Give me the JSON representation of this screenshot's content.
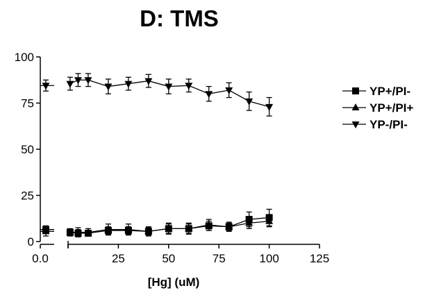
{
  "chart_data": {
    "type": "scatter",
    "title": "D: TMS",
    "xlabel": "[Hg] (uM)",
    "ylabel": "",
    "xlim_control": [
      0,
      5
    ],
    "xlim": [
      0,
      125
    ],
    "ylim": [
      0,
      100
    ],
    "xticks_control": [
      "0.0"
    ],
    "xticks": [
      "0",
      "25",
      "50",
      "75",
      "100",
      "125"
    ],
    "yticks": [
      "0",
      "25",
      "50",
      "75",
      "100"
    ],
    "legend_position": "right",
    "series": [
      {
        "name": "YP+/PI-",
        "marker": "square",
        "control": {
          "x": 2,
          "y": 6.5,
          "err": 2
        },
        "x": [
          1,
          5,
          10,
          20,
          30,
          40,
          50,
          60,
          70,
          80,
          90,
          100
        ],
        "y": [
          5,
          4.5,
          4.5,
          6,
          6,
          5.5,
          7,
          7,
          8.5,
          8,
          12,
          13
        ],
        "err": [
          1.5,
          2,
          1.5,
          2,
          2,
          2,
          2.5,
          2.5,
          2.5,
          2,
          4,
          4.5
        ]
      },
      {
        "name": "YP+/PI+",
        "marker": "triangle-up",
        "control": {
          "x": 2,
          "y": 5.5,
          "err": 2.5
        },
        "x": [
          1,
          5,
          10,
          20,
          30,
          40,
          50,
          60,
          70,
          80,
          90,
          100
        ],
        "y": [
          5,
          5,
          5,
          6.5,
          6.5,
          5.5,
          7,
          7,
          9,
          8,
          10,
          11
        ],
        "err": [
          2,
          2.5,
          2,
          3,
          3,
          2.5,
          3,
          3,
          3,
          2.5,
          3,
          3
        ]
      },
      {
        "name": "YP-/PI-",
        "marker": "triangle-down",
        "control": {
          "x": 2,
          "y": 84.5,
          "err": 3
        },
        "x": [
          1,
          5,
          10,
          20,
          30,
          40,
          50,
          60,
          70,
          80,
          90,
          100
        ],
        "y": [
          85.5,
          87.5,
          87.5,
          84,
          85.5,
          87,
          84,
          84.5,
          80,
          82,
          76,
          73
        ],
        "err": [
          3.5,
          3.5,
          3.5,
          4,
          3.5,
          3.5,
          4,
          3.5,
          4,
          4,
          5,
          5
        ]
      }
    ]
  }
}
